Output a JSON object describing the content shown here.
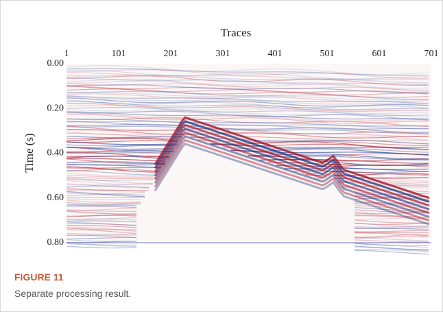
{
  "chart_data": {
    "type": "seismic-section",
    "title": "Traces",
    "y_label": "Time (s)",
    "xlim": [
      1,
      701
    ],
    "xticks": [
      1,
      101,
      201,
      301,
      401,
      501,
      601,
      701
    ],
    "ylim": [
      0.8,
      0
    ],
    "yticks": [
      {
        "value": 0,
        "label": "0.00"
      },
      {
        "value": 0.2,
        "label": "0.20"
      },
      {
        "value": 0.4,
        "label": "0.40"
      },
      {
        "value": 0.6,
        "label": "0.60"
      },
      {
        "value": 0.8,
        "label": "0.80"
      }
    ]
  },
  "figure": {
    "label": "FIGURE 11",
    "caption": "Separate processing result."
  }
}
